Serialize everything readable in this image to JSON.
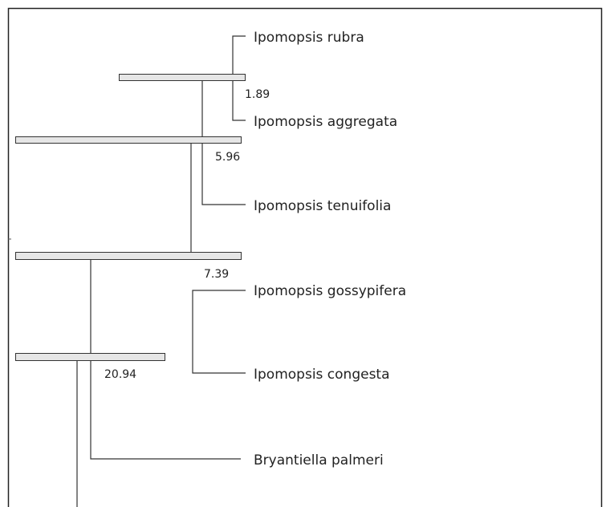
{
  "taxa": [
    "Ipomopsis rubra",
    "Ipomopsis aggregata",
    "Ipomopsis tenuifolia",
    "Ipomopsis gossypifera",
    "Ipomopsis congesta",
    "Bryantiella palmeri"
  ],
  "nodes": [
    {
      "age": 1.89
    },
    {
      "age": 5.96
    },
    {
      "age": 7.39
    },
    {
      "age": 20.94
    }
  ]
}
